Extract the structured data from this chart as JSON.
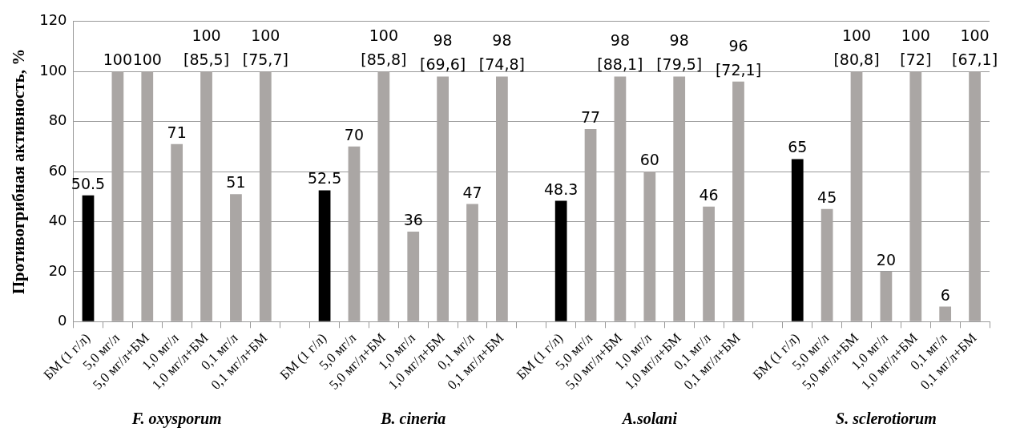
{
  "chart_data": {
    "type": "bar",
    "ylabel": "Противогрибная активность, %",
    "categories": [
      "БМ (1 г/л)",
      "5,0 мг/л",
      "5,0 мг/л+БМ",
      "1,0 мг/л",
      "1,0 мг/л+БМ",
      "0,1 мг/л",
      "0,1 мг/л+БМ",
      null,
      "БМ (1 г/л)",
      "5,0 мг/л",
      "5,0 мг/л+БМ",
      "1,0 мг/л",
      "1,0 мг/л+БМ",
      "0,1 мг/л",
      "0,1 мг/л+БМ",
      null,
      "БМ (1 г/л)",
      "5,0 мг/л",
      "5,0 мг/л+БМ",
      "1,0 мг/л",
      "1,0 мг/л+БМ",
      "0,1 мг/л",
      "0,1 мг/л+БМ",
      null,
      "БМ (1 г/л)",
      "5,0 мг/л",
      "5,0 мг/л+БМ",
      "1,0 мг/л",
      "1,0 мг/л+БМ",
      "0,1 мг/л",
      "0,1 мг/л+БМ"
    ],
    "values": [
      50.5,
      100,
      100,
      71,
      100,
      51,
      100,
      null,
      52.5,
      70,
      100,
      36,
      98,
      47,
      98,
      null,
      48.3,
      77,
      98,
      60,
      98,
      46,
      96,
      null,
      65,
      45,
      100,
      20,
      100,
      6,
      100
    ],
    "value_labels": [
      "50.5",
      "100",
      "100",
      "71",
      "100\n[85,5]",
      "51",
      "100\n[75,7]",
      null,
      "52.5",
      "70",
      "100\n[85,8]",
      "36",
      "98\n[69,6]",
      "47",
      "98\n[74,8]",
      null,
      "48.3",
      "77",
      "98\n[88,1]",
      "60",
      "98\n[79,5]",
      "46",
      "96\n[72,1]",
      null,
      "65",
      "45",
      "100\n[80,8]",
      "20",
      "100\n[72]",
      "6",
      "100\n[67,1]"
    ],
    "colors": [
      "#000000",
      "#aaa6a4",
      "#aaa6a4",
      "#aaa6a4",
      "#aaa6a4",
      "#aaa6a4",
      "#aaa6a4",
      null,
      "#000000",
      "#aaa6a4",
      "#aaa6a4",
      "#aaa6a4",
      "#aaa6a4",
      "#aaa6a4",
      "#aaa6a4",
      null,
      "#000000",
      "#aaa6a4",
      "#aaa6a4",
      "#aaa6a4",
      "#aaa6a4",
      "#aaa6a4",
      "#aaa6a4",
      null,
      "#000000",
      "#aaa6a4",
      "#aaa6a4",
      "#aaa6a4",
      "#aaa6a4",
      "#aaa6a4",
      "#aaa6a4"
    ],
    "ylim": [
      0,
      120
    ],
    "yticks": [
      0,
      20,
      40,
      60,
      80,
      100,
      120
    ],
    "grid": "y",
    "legend": false,
    "annotations": [
      "F. oxysporum",
      "B. cineria",
      "A.solani",
      "S. sclerotiorum"
    ]
  }
}
